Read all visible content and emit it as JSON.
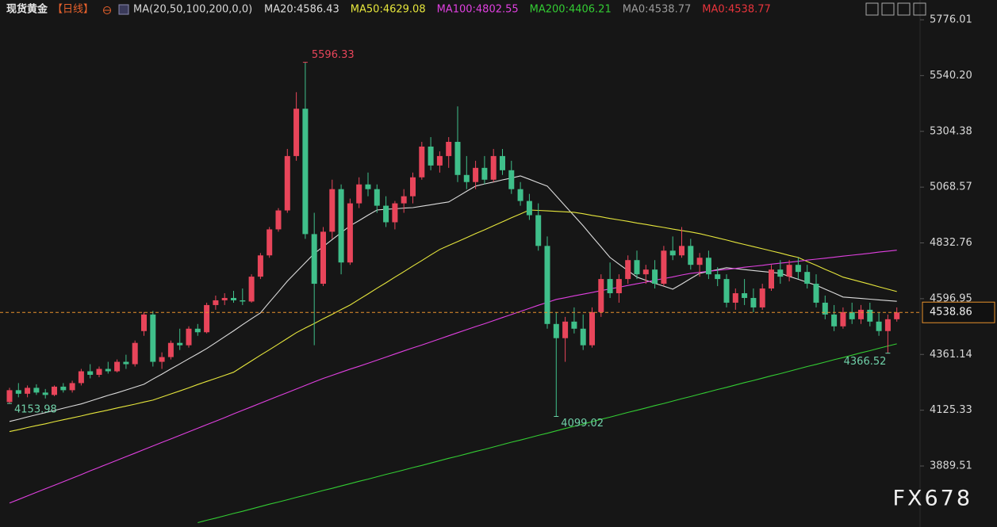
{
  "chart_data": {
    "type": "candlestick",
    "title": "现货黄金",
    "period": "【日线】",
    "indicator": "MA(20,50,100,200,0,0)",
    "extra_labels": [
      {
        "text": "MA0:4538.77",
        "color": "#9a9a9a"
      },
      {
        "text": "MA0:4538.77",
        "color": "#e8343c"
      }
    ],
    "watermark": "FX678",
    "up_color": "#e8455a",
    "down_color": "#3fbf8a",
    "ylim": [
      3631.6,
      5859.75
    ],
    "yticks": [
      3889.51,
      4125.33,
      4361.14,
      4596.95,
      4832.76,
      5068.57,
      5304.38,
      {
        "value": 5540.2,
        "label": "5540.20"
      },
      5776.01
    ],
    "categories": [
      null,
      null,
      null,
      null,
      null,
      null,
      null,
      null,
      null,
      null,
      null,
      null,
      null,
      null,
      null,
      null,
      null,
      null,
      null,
      null,
      null,
      null,
      null,
      null,
      null,
      null,
      null,
      null,
      null,
      null,
      null,
      null,
      null,
      null,
      null,
      null,
      null,
      null,
      null,
      null,
      null,
      null,
      null,
      null,
      null,
      null,
      null,
      null,
      null,
      null,
      null,
      null,
      null,
      null,
      null,
      null,
      null,
      null,
      null,
      null,
      null,
      null,
      null,
      null,
      null,
      null,
      null,
      null,
      null,
      null,
      null,
      null,
      null,
      null,
      null,
      null,
      null,
      null,
      null,
      null,
      null,
      null,
      null,
      null,
      null,
      null,
      null,
      null,
      null,
      null,
      null,
      null,
      null,
      null,
      null,
      null,
      null,
      null,
      null,
      null
    ],
    "open": [
      4160,
      4210,
      4195,
      4220,
      4200,
      4190,
      4225,
      4210,
      4240,
      4290,
      4275,
      4300,
      4290,
      4330,
      4320,
      4460,
      4530,
      4330,
      4350,
      4410,
      4400,
      4470,
      4455,
      4570,
      4590,
      4600,
      4590,
      4585,
      4690,
      4780,
      4890,
      4970,
      5200,
      5400,
      4870,
      4660,
      4880,
      5060,
      4750,
      5000,
      5080,
      5060,
      4990,
      4920,
      5000,
      5030,
      5110,
      5240,
      5160,
      5200,
      5260,
      5120,
      5090,
      5150,
      5100,
      5200,
      5140,
      5060,
      5010,
      4950,
      4820,
      4490,
      4430,
      4500,
      4470,
      4400,
      4540,
      4680,
      4620,
      4680,
      4760,
      4700,
      4720,
      4660,
      4800,
      4780,
      4820,
      4740,
      4770,
      4700,
      4680,
      4580,
      4620,
      4600,
      4560,
      4640,
      4720,
      4690,
      4740,
      4710,
      4660,
      4580,
      4530,
      4480,
      4540,
      4510,
      4550,
      4500,
      4460,
      4510
    ],
    "high": [
      4220,
      4240,
      4230,
      4235,
      4215,
      4230,
      4240,
      4250,
      4300,
      4320,
      4310,
      4330,
      4340,
      4360,
      4420,
      4540,
      4545,
      4370,
      4420,
      4470,
      4480,
      4490,
      4580,
      4610,
      4620,
      4630,
      4640,
      4700,
      4790,
      4900,
      4980,
      5230,
      5470,
      5596.33,
      4960,
      4900,
      5100,
      5080,
      5020,
      5110,
      5130,
      5080,
      5030,
      5010,
      5060,
      5130,
      5260,
      5280,
      5220,
      5280,
      5410,
      5200,
      5180,
      5200,
      5230,
      5230,
      5180,
      5090,
      5040,
      5000,
      4860,
      4540,
      4520,
      4560,
      4530,
      4560,
      4700,
      4750,
      4700,
      4780,
      4800,
      4740,
      4760,
      4820,
      4860,
      4900,
      4850,
      4790,
      4800,
      4730,
      4700,
      4640,
      4680,
      4640,
      4660,
      4740,
      4760,
      4760,
      4770,
      4740,
      4700,
      4610,
      4570,
      4560,
      4580,
      4570,
      4580,
      4540,
      4530,
      4560
    ],
    "low": [
      4153.98,
      4180,
      4180,
      4190,
      4175,
      4185,
      4200,
      4200,
      4230,
      4260,
      4265,
      4280,
      4285,
      4300,
      4310,
      4440,
      4310,
      4300,
      4340,
      4380,
      4390,
      4440,
      4450,
      4550,
      4570,
      4580,
      4570,
      4580,
      4680,
      4770,
      4880,
      4960,
      5180,
      4850,
      4400,
      4650,
      4850,
      4700,
      4740,
      4980,
      5030,
      4960,
      4900,
      4890,
      4960,
      5000,
      5100,
      5140,
      5130,
      5150,
      5090,
      5060,
      5060,
      5080,
      5090,
      5120,
      5040,
      4990,
      4930,
      4800,
      4470,
      4099.02,
      4330,
      4450,
      4380,
      4390,
      4520,
      4600,
      4580,
      4660,
      4680,
      4660,
      4640,
      4650,
      4760,
      4770,
      4720,
      4690,
      4680,
      4650,
      4560,
      4550,
      4570,
      4540,
      4550,
      4630,
      4660,
      4670,
      4680,
      4640,
      4560,
      4510,
      4460,
      4470,
      4490,
      4490,
      4480,
      4440,
      4366.52,
      4500
    ],
    "close": [
      4210,
      4195,
      4220,
      4200,
      4190,
      4225,
      4210,
      4240,
      4290,
      4275,
      4300,
      4290,
      4330,
      4320,
      4410,
      4530,
      4330,
      4350,
      4410,
      4400,
      4470,
      4455,
      4570,
      4590,
      4600,
      4590,
      4585,
      4690,
      4780,
      4890,
      4970,
      5200,
      5400,
      4870,
      4660,
      4880,
      5060,
      4750,
      5000,
      5080,
      5060,
      4990,
      4920,
      5000,
      5030,
      5110,
      5240,
      5160,
      5200,
      5260,
      5120,
      5090,
      5150,
      5100,
      5200,
      5140,
      5060,
      5010,
      4950,
      4820,
      4490,
      4430,
      4500,
      4470,
      4400,
      4540,
      4680,
      4620,
      4680,
      4760,
      4700,
      4720,
      4660,
      4800,
      4780,
      4820,
      4740,
      4770,
      4700,
      4680,
      4580,
      4620,
      4600,
      4560,
      4640,
      4720,
      4690,
      4740,
      4710,
      4660,
      4580,
      4530,
      4480,
      4540,
      4510,
      4550,
      4500,
      4460,
      4510,
      4538.86
    ],
    "series": [
      {
        "name": "MA20:4586.43",
        "color": "#dcdcdc",
        "values": [
          4078,
          4087,
          4097,
          4106,
          4115,
          4124,
          4134,
          4143,
          4152,
          4164,
          4176,
          4188,
          4199,
          4211,
          4223,
          4235,
          4257,
          4278,
          4300,
          4321,
          4343,
          4364,
          4386,
          4411,
          4436,
          4461,
          4487,
          4512,
          4537,
          4582,
          4626,
          4671,
          4710,
          4749,
          4788,
          4817,
          4847,
          4876,
          4905,
          4927,
          4950,
          4972,
          4975,
          4977,
          4980,
          4982,
          4988,
          4994,
          5000,
          5006,
          5028,
          5051,
          5073,
          5082,
          5090,
          5099,
          5107,
          5116,
          5102,
          5087,
          5073,
          5031,
          4989,
          4947,
          4905,
          4860,
          4816,
          4771,
          4743,
          4716,
          4688,
          4675,
          4662,
          4650,
          4637,
          4659,
          4682,
          4704,
          4712,
          4720,
          4728,
          4724,
          4720,
          4716,
          4712,
          4708,
          4704,
          4691,
          4679,
          4666,
          4654,
          4637,
          4621,
          4604,
          4601,
          4598,
          4595,
          4592,
          4589,
          4586
        ]
      },
      {
        "name": "MA50:4629.08",
        "color": "#e6e63c",
        "values": [
          4035,
          4043,
          4052,
          4060,
          4068,
          4077,
          4085,
          4093,
          4101,
          4110,
          4118,
          4126,
          4135,
          4143,
          4151,
          4160,
          4168,
          4181,
          4194,
          4207,
          4220,
          4234,
          4247,
          4260,
          4273,
          4286,
          4310,
          4334,
          4358,
          4381,
          4405,
          4429,
          4453,
          4473,
          4492,
          4512,
          4531,
          4551,
          4570,
          4594,
          4617,
          4641,
          4664,
          4688,
          4711,
          4735,
          4758,
          4782,
          4805,
          4822,
          4838,
          4855,
          4872,
          4888,
          4905,
          4922,
          4939,
          4955,
          4972,
          4970,
          4968,
          4966,
          4964,
          4962,
          4956,
          4949,
          4943,
          4936,
          4930,
          4924,
          4917,
          4911,
          4904,
          4898,
          4891,
          4885,
          4879,
          4872,
          4863,
          4854,
          4845,
          4835,
          4826,
          4817,
          4808,
          4799,
          4790,
          4780,
          4771,
          4754,
          4738,
          4721,
          4705,
          4688,
          4678,
          4668,
          4658,
          4647,
          4637,
          4627
        ]
      },
      {
        "name": "MA100:4802.55",
        "color": "#e040e0",
        "values": [
          3733,
          3748,
          3763,
          3778,
          3793,
          3808,
          3823,
          3838,
          3853,
          3869,
          3884,
          3899,
          3914,
          3929,
          3944,
          3959,
          3974,
          3989,
          4004,
          4019,
          4034,
          4049,
          4064,
          4079,
          4094,
          4110,
          4125,
          4140,
          4155,
          4170,
          4185,
          4200,
          4215,
          4230,
          4245,
          4260,
          4273,
          4286,
          4299,
          4311,
          4324,
          4337,
          4350,
          4363,
          4376,
          4389,
          4401,
          4414,
          4427,
          4440,
          4453,
          4466,
          4479,
          4491,
          4504,
          4517,
          4530,
          4543,
          4556,
          4569,
          4581,
          4594,
          4601,
          4609,
          4616,
          4623,
          4631,
          4638,
          4645,
          4653,
          4660,
          4667,
          4675,
          4682,
          4689,
          4697,
          4704,
          4708,
          4713,
          4717,
          4721,
          4725,
          4730,
          4734,
          4738,
          4743,
          4747,
          4751,
          4755,
          4760,
          4764,
          4768,
          4772,
          4777,
          4781,
          4785,
          4789,
          4794,
          4798,
          4802
        ]
      },
      {
        "name": "MA200:4406.21",
        "color": "#33cc33",
        "values": [
          null,
          null,
          null,
          null,
          null,
          null,
          null,
          null,
          null,
          null,
          null,
          null,
          null,
          null,
          null,
          null,
          null,
          null,
          null,
          null,
          null,
          3650,
          3660,
          3669,
          3679,
          3689,
          3698,
          3708,
          3718,
          3728,
          3737,
          3747,
          3757,
          3766,
          3776,
          3786,
          3795,
          3805,
          3815,
          3825,
          3834,
          3844,
          3854,
          3863,
          3873,
          3883,
          3892,
          3902,
          3912,
          3922,
          3931,
          3941,
          3951,
          3960,
          3970,
          3980,
          3990,
          3999,
          4009,
          4019,
          4028,
          4038,
          4048,
          4057,
          4067,
          4077,
          4087,
          4096,
          4106,
          4116,
          4125,
          4135,
          4145,
          4154,
          4164,
          4174,
          4183,
          4193,
          4203,
          4213,
          4222,
          4232,
          4242,
          4251,
          4261,
          4271,
          4280,
          4290,
          4300,
          4310,
          4319,
          4329,
          4339,
          4348,
          4358,
          4368,
          4377,
          4387,
          4397,
          4406
        ]
      }
    ]
  }
}
